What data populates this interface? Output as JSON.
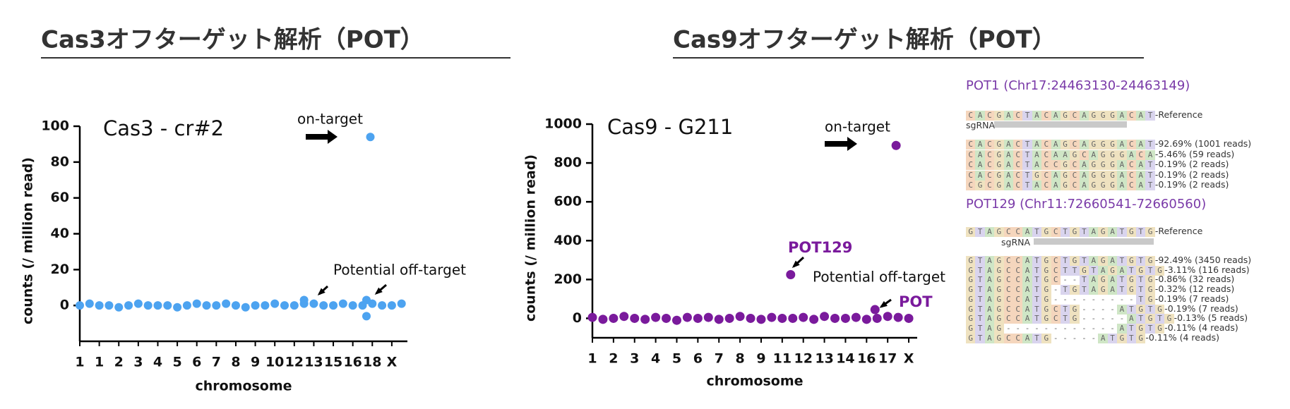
{
  "chart_data": [
    {
      "type": "scatter",
      "title": "Cas3オフターゲット解析（POT）",
      "panel_label": "Cas3 - cr#2",
      "x_label": "chromosome",
      "y_label": "counts (/ million read)",
      "color": "#4da3f0",
      "xlim": [
        1,
        17.8
      ],
      "ylim": [
        -20,
        100
      ],
      "yticks": [
        0,
        20,
        40,
        60,
        80,
        100
      ],
      "xticks": [
        {
          "value": 1,
          "label": "1"
        },
        {
          "value": 2,
          "label": "1"
        },
        {
          "value": 3,
          "label": "2"
        },
        {
          "value": 4,
          "label": "3"
        },
        {
          "value": 5,
          "label": "4"
        },
        {
          "value": 6,
          "label": "5"
        },
        {
          "value": 7,
          "label": "6"
        },
        {
          "value": 8,
          "label": "7"
        },
        {
          "value": 9,
          "label": "8"
        },
        {
          "value": 10,
          "label": "9"
        },
        {
          "value": 11,
          "label": "10"
        },
        {
          "value": 12,
          "label": "12"
        },
        {
          "value": 13,
          "label": "13"
        },
        {
          "value": 14,
          "label": "15"
        },
        {
          "value": 15,
          "label": "16"
        },
        {
          "value": 16,
          "label": "18"
        },
        {
          "value": 17,
          "label": "X"
        }
      ],
      "x": [
        1,
        1.5,
        2,
        2.5,
        3,
        3.5,
        4,
        4.5,
        5,
        5.5,
        6,
        6.5,
        7,
        7.5,
        8,
        8.5,
        9,
        9.5,
        10,
        10.5,
        11,
        11.5,
        12,
        12.5,
        13,
        13.5,
        14,
        14.5,
        15,
        15.5,
        16,
        16.5,
        17,
        17.5,
        15.9,
        12.5,
        15.7,
        15.7
      ],
      "values": [
        0,
        1,
        0,
        0,
        -1,
        0,
        1,
        0,
        0,
        0,
        -1,
        0,
        1,
        0,
        0,
        1,
        0,
        -1,
        0,
        0,
        1,
        0,
        0,
        1,
        1,
        0,
        0,
        1,
        0,
        0,
        1,
        0,
        0,
        1,
        94,
        3,
        3,
        -6
      ],
      "annotations": [
        "on-target",
        "Potential off-target"
      ]
    },
    {
      "type": "scatter",
      "title": "Cas9オフターゲット解析（POT）",
      "panel_label": "Cas9 - G211",
      "x_label": "chromosome",
      "y_label": "counts (/ million read)",
      "color": "#7a1a9c",
      "xlim": [
        1,
        16.4
      ],
      "ylim": [
        -100,
        1000
      ],
      "yticks": [
        0,
        200,
        400,
        600,
        800,
        1000
      ],
      "xticks": [
        {
          "value": 1,
          "label": "1"
        },
        {
          "value": 2,
          "label": "2"
        },
        {
          "value": 3,
          "label": "3"
        },
        {
          "value": 4,
          "label": "4"
        },
        {
          "value": 5,
          "label": "5"
        },
        {
          "value": 6,
          "label": "6"
        },
        {
          "value": 7,
          "label": "7"
        },
        {
          "value": 8,
          "label": "8"
        },
        {
          "value": 9,
          "label": "9"
        },
        {
          "value": 10,
          "label": "11"
        },
        {
          "value": 11,
          "label": "12"
        },
        {
          "value": 12,
          "label": "13"
        },
        {
          "value": 13,
          "label": "14"
        },
        {
          "value": 14,
          "label": "16"
        },
        {
          "value": 15,
          "label": "17"
        },
        {
          "value": 16,
          "label": "X"
        }
      ],
      "x": [
        1,
        1.5,
        2,
        2.5,
        3,
        3.5,
        4,
        4.5,
        5,
        5.5,
        6,
        6.5,
        7,
        7.5,
        8,
        8.5,
        9,
        9.5,
        10,
        10.5,
        11,
        11.5,
        12,
        12.5,
        13,
        13.5,
        14,
        14.5,
        15,
        15.5,
        16,
        15.4,
        10.4,
        14.4
      ],
      "values": [
        5,
        -5,
        0,
        10,
        0,
        -5,
        5,
        0,
        -10,
        5,
        0,
        5,
        -5,
        0,
        10,
        0,
        -5,
        5,
        0,
        0,
        5,
        -5,
        10,
        0,
        0,
        5,
        -5,
        0,
        10,
        5,
        0,
        890,
        225,
        45
      ],
      "annotations": [
        "on-target",
        "POT129",
        "Potential off-target",
        "POT"
      ]
    }
  ],
  "alignments": [
    {
      "title": "POT1 (Chr17:24463130-24463149)",
      "reference": {
        "sequence": "CACGACTACAGCAGGGACAT",
        "label": "-Reference"
      },
      "sgrna_label": "sgRNA",
      "rows": [
        {
          "sequence": "CACGACTACAGCAGGGACAT",
          "label": "-92.69% (1001 reads)"
        },
        {
          "sequence": "CACGACTACAAGCAGGGACA",
          "label": "-5.46% (59 reads)"
        },
        {
          "sequence": "CACGACTACCGCAGGGACAT",
          "label": "-0.19% (2 reads)"
        },
        {
          "sequence": "CACGACTGCAGCAGGGACAT",
          "label": "-0.19% (2 reads)"
        },
        {
          "sequence": "CGCGACTACAGCAGGGACAT",
          "label": "-0.19% (2 reads)"
        }
      ]
    },
    {
      "title": "POT129 (Chr11:72660541-72660560)",
      "reference": {
        "sequence": "GTAGCCATGCTGTAGATGTG",
        "label": "-Reference"
      },
      "sgrna_label": "sgRNA",
      "rows": [
        {
          "sequence": "GTAGCCATGCTGTAGATGTG",
          "label": "-92.49% (3450 reads)"
        },
        {
          "sequence": "GTAGCCATGCTTGTAGATGTG",
          "label": "-3.11% (116 reads)"
        },
        {
          "sequence": "GTAGCCATGC--TAGATGTG",
          "label": "-0.86% (32 reads)"
        },
        {
          "sequence": "GTAGCCATG-TGTAGATGTG",
          "label": "-0.32% (12 reads)"
        },
        {
          "sequence": "GTAGCCATG---------TG",
          "label": "-0.19% (7 reads)"
        },
        {
          "sequence": "GTAGCCATGCTG----ATGTG",
          "label": "-0.19% (7 reads)"
        },
        {
          "sequence": "GTAGCCATGCTG-----ATGTG",
          "label": "-0.13% (5 reads)"
        },
        {
          "sequence": "GTAG------------ATGTG",
          "label": "-0.11% (4 reads)"
        },
        {
          "sequence": "GTAGCCATG-----ATGTG",
          "label": "-0.11% (4 reads)"
        }
      ]
    }
  ]
}
